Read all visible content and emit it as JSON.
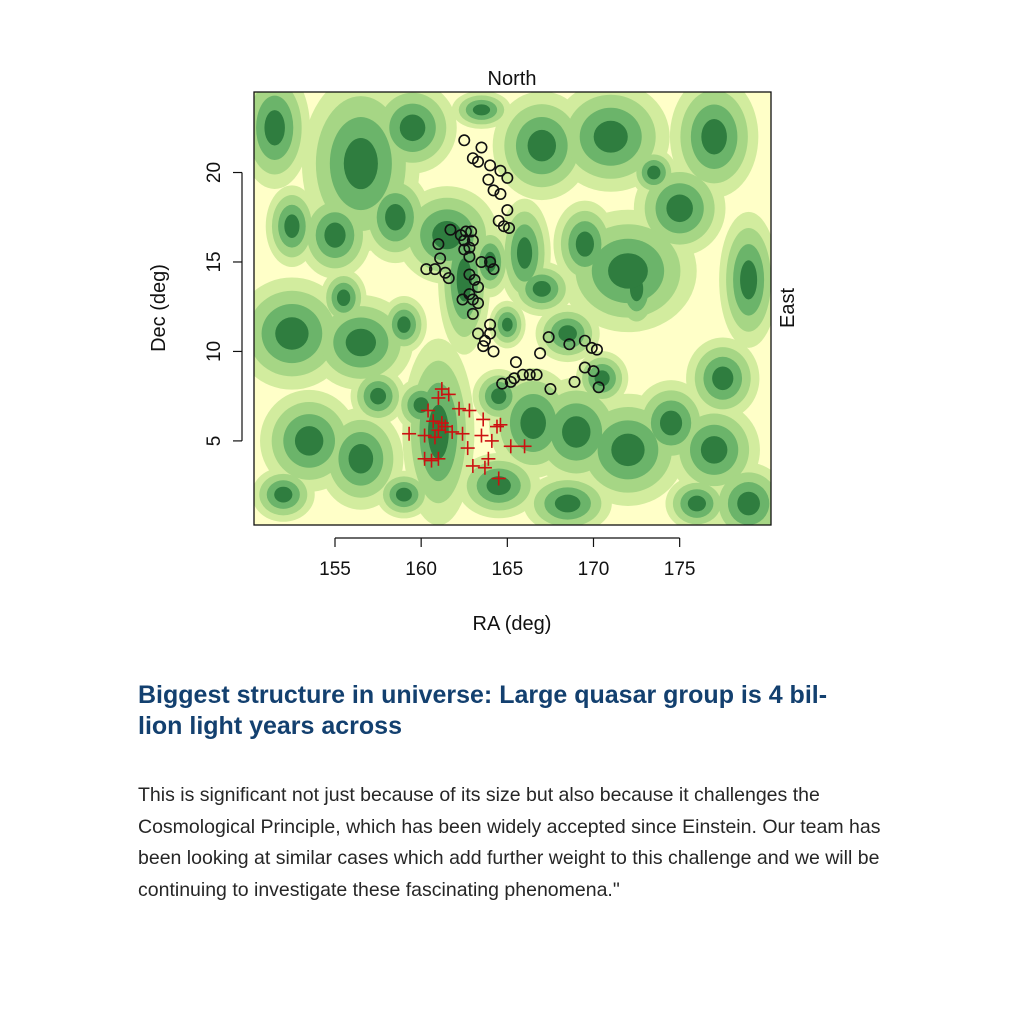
{
  "chart_data": {
    "type": "scatter",
    "title": "North",
    "right_label": "East",
    "xlabel": "RA (deg)",
    "ylabel": "Dec (deg)",
    "xlim": [
      150.3,
      180.3
    ],
    "ylim": [
      0.3,
      24.5
    ],
    "x_ticks": [
      155,
      160,
      165,
      170,
      175
    ],
    "y_ticks": [
      5,
      10,
      15,
      20
    ],
    "grid": false,
    "legend": "none",
    "colors": {
      "background": "#ffffc8",
      "level1": "#d2ec9e",
      "level2": "#a6d685",
      "level3": "#6bb46a",
      "level4": "#2f7d3f",
      "circles": "#111111",
      "crosses": "#cc1111"
    },
    "series": [
      {
        "marker": "circle",
        "color": "#111111",
        "points": [
          [
            162.5,
            21.8
          ],
          [
            163.5,
            21.4
          ],
          [
            163.0,
            20.8
          ],
          [
            163.3,
            20.6
          ],
          [
            164.0,
            20.4
          ],
          [
            164.6,
            20.1
          ],
          [
            165.0,
            19.7
          ],
          [
            163.9,
            19.6
          ],
          [
            164.2,
            19.0
          ],
          [
            164.6,
            18.8
          ],
          [
            165.0,
            17.9
          ],
          [
            164.5,
            17.3
          ],
          [
            164.8,
            17.0
          ],
          [
            165.1,
            16.9
          ],
          [
            161.7,
            16.8
          ],
          [
            162.3,
            16.5
          ],
          [
            162.6,
            16.7
          ],
          [
            162.9,
            16.7
          ],
          [
            163.0,
            16.2
          ],
          [
            162.5,
            16.2
          ],
          [
            162.8,
            15.8
          ],
          [
            161.0,
            16.0
          ],
          [
            162.5,
            15.7
          ],
          [
            162.8,
            15.3
          ],
          [
            161.1,
            15.2
          ],
          [
            163.5,
            15.0
          ],
          [
            164.0,
            15.0
          ],
          [
            164.2,
            14.6
          ],
          [
            160.3,
            14.6
          ],
          [
            160.8,
            14.6
          ],
          [
            161.4,
            14.4
          ],
          [
            161.6,
            14.1
          ],
          [
            162.8,
            14.3
          ],
          [
            163.1,
            14.0
          ],
          [
            163.3,
            13.6
          ],
          [
            162.8,
            13.2
          ],
          [
            163.0,
            12.9
          ],
          [
            162.4,
            12.9
          ],
          [
            163.3,
            12.7
          ],
          [
            163.0,
            12.1
          ],
          [
            164.0,
            11.5
          ],
          [
            164.0,
            11.0
          ],
          [
            163.3,
            11.0
          ],
          [
            163.7,
            10.6
          ],
          [
            163.6,
            10.3
          ],
          [
            164.2,
            10.0
          ],
          [
            165.5,
            9.4
          ],
          [
            166.9,
            9.9
          ],
          [
            167.4,
            10.8
          ],
          [
            168.6,
            10.4
          ],
          [
            169.5,
            10.6
          ],
          [
            169.9,
            10.2
          ],
          [
            170.2,
            10.1
          ],
          [
            169.5,
            9.1
          ],
          [
            170.0,
            8.9
          ],
          [
            166.3,
            8.7
          ],
          [
            166.7,
            8.7
          ],
          [
            165.9,
            8.7
          ],
          [
            165.4,
            8.5
          ],
          [
            165.2,
            8.3
          ],
          [
            164.7,
            8.2
          ],
          [
            168.9,
            8.3
          ],
          [
            170.3,
            8.0
          ],
          [
            167.5,
            7.9
          ]
        ]
      },
      {
        "marker": "plus",
        "color": "#cc1111",
        "points": [
          [
            161.2,
            7.9
          ],
          [
            161.6,
            7.6
          ],
          [
            161.0,
            7.4
          ],
          [
            160.4,
            6.7
          ],
          [
            162.2,
            6.8
          ],
          [
            162.8,
            6.7
          ],
          [
            160.7,
            6.1
          ],
          [
            161.2,
            6.0
          ],
          [
            161.4,
            5.8
          ],
          [
            161.0,
            5.6
          ],
          [
            161.8,
            5.5
          ],
          [
            162.4,
            5.4
          ],
          [
            163.6,
            6.2
          ],
          [
            164.4,
            5.8
          ],
          [
            164.6,
            5.9
          ],
          [
            159.3,
            5.4
          ],
          [
            160.2,
            5.3
          ],
          [
            160.8,
            5.2
          ],
          [
            163.5,
            5.3
          ],
          [
            164.1,
            5.0
          ],
          [
            165.2,
            4.7
          ],
          [
            166.0,
            4.7
          ],
          [
            162.7,
            4.6
          ],
          [
            160.2,
            4.0
          ],
          [
            160.6,
            3.9
          ],
          [
            161.0,
            4.0
          ],
          [
            163.9,
            4.0
          ],
          [
            163.0,
            3.6
          ],
          [
            163.7,
            3.5
          ],
          [
            164.5,
            2.9
          ]
        ]
      }
    ],
    "density_field": {
      "legend": "none",
      "blobs": [
        [
          156.5,
          20.5,
          1.8,
          2.6,
          1.0
        ],
        [
          159.5,
          22.5,
          1.5,
          1.5,
          0.9
        ],
        [
          151.5,
          22.5,
          1.2,
          2.0,
          0.9
        ],
        [
          152.5,
          17.0,
          1.0,
          1.5,
          0.8
        ],
        [
          155.0,
          16.5,
          1.4,
          1.6,
          0.8
        ],
        [
          158.5,
          17.5,
          1.2,
          1.5,
          0.9
        ],
        [
          161.5,
          16.5,
          1.3,
          1.2,
          1.2
        ],
        [
          162.5,
          14.0,
          0.8,
          2.2,
          1.0
        ],
        [
          164.0,
          15.0,
          0.8,
          1.3,
          0.8
        ],
        [
          167.0,
          21.5,
          1.5,
          1.6,
          1.0
        ],
        [
          171.0,
          22.0,
          2.0,
          1.8,
          0.9
        ],
        [
          177.0,
          22.0,
          1.5,
          2.0,
          0.9
        ],
        [
          175.0,
          18.0,
          1.4,
          1.4,
          1.0
        ],
        [
          179.0,
          14.0,
          0.9,
          2.0,
          1.0
        ],
        [
          177.5,
          8.5,
          1.4,
          1.5,
          0.8
        ],
        [
          172.5,
          13.5,
          1.0,
          1.8,
          0.7
        ],
        [
          172.0,
          14.5,
          1.4,
          1.2,
          1.5
        ],
        [
          169.5,
          16.0,
          1.2,
          1.6,
          0.8
        ],
        [
          166.0,
          15.5,
          1.0,
          2.0,
          0.8
        ],
        [
          167.0,
          13.5,
          1.2,
          1.0,
          0.8
        ],
        [
          168.5,
          11.0,
          1.4,
          1.2,
          0.7
        ],
        [
          152.5,
          11.0,
          1.6,
          1.5,
          1.1
        ],
        [
          156.5,
          10.5,
          1.6,
          1.4,
          1.0
        ],
        [
          159.0,
          11.5,
          1.0,
          1.2,
          0.7
        ],
        [
          153.5,
          5.0,
          1.5,
          1.5,
          1.0
        ],
        [
          156.5,
          4.0,
          1.3,
          1.5,
          1.0
        ],
        [
          152.0,
          2.0,
          1.2,
          1.0,
          0.8
        ],
        [
          157.5,
          7.5,
          1.2,
          1.2,
          0.7
        ],
        [
          160.0,
          7.0,
          1.0,
          1.0,
          0.8
        ],
        [
          161.0,
          5.5,
          1.0,
          2.5,
          1.1
        ],
        [
          164.5,
          7.5,
          1.0,
          1.0,
          0.8
        ],
        [
          166.5,
          6.0,
          1.5,
          1.8,
          0.9
        ],
        [
          169.0,
          5.5,
          1.5,
          1.6,
          1.0
        ],
        [
          172.0,
          4.5,
          1.6,
          1.5,
          1.1
        ],
        [
          174.5,
          6.0,
          1.3,
          1.4,
          0.9
        ],
        [
          177.0,
          4.5,
          1.4,
          1.4,
          1.0
        ],
        [
          179.0,
          1.5,
          1.2,
          1.2,
          1.0
        ],
        [
          176.0,
          1.5,
          1.2,
          1.0,
          0.8
        ],
        [
          168.5,
          1.5,
          1.5,
          1.0,
          0.9
        ],
        [
          164.5,
          2.5,
          1.6,
          1.2,
          0.8
        ],
        [
          159.0,
          2.0,
          1.2,
          1.0,
          0.7
        ],
        [
          155.5,
          13.0,
          1.0,
          1.2,
          0.7
        ],
        [
          170.5,
          8.5,
          1.0,
          1.0,
          0.8
        ],
        [
          163.5,
          23.5,
          1.3,
          0.8,
          0.7
        ],
        [
          173.5,
          20.0,
          1.0,
          1.0,
          0.7
        ],
        [
          165.0,
          11.5,
          0.8,
          1.0,
          0.7
        ]
      ]
    }
  },
  "article": {
    "headline": "Biggest structure in universe: Large quasar group is 4 bil-\nlion light years across",
    "body": "This is significant not just because of its size but also because it challenges the Cosmological Principle, which has been widely accepted since Einstein. Our team has been looking at similar cases which add further weight to this challenge and we will be continuing to investigate these fascinating phenomena.\""
  }
}
